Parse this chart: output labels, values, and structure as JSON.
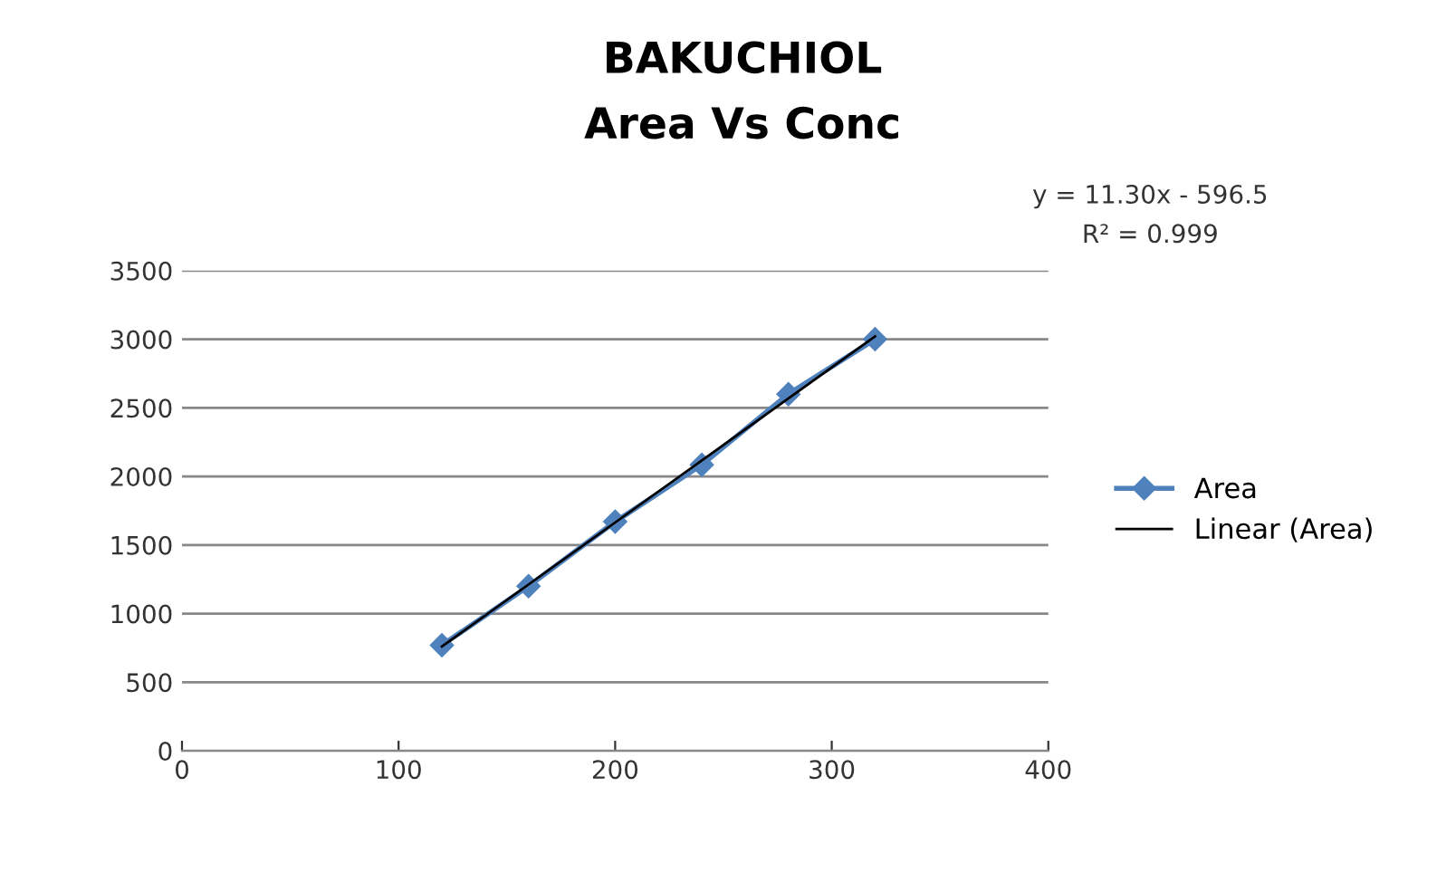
{
  "chart_data": {
    "type": "line",
    "title": "BAKUCHIOL",
    "subtitle": "Area Vs Conc",
    "series": [
      {
        "name": "Area",
        "color": "#4f81bd",
        "x": [
          120,
          160,
          200,
          240,
          280,
          320
        ],
        "values": [
          770,
          1200,
          1670,
          2085,
          2600,
          3000
        ],
        "marker": "diamond"
      },
      {
        "name": "Linear (Area)",
        "color": "#000000",
        "x": [
          120,
          320
        ],
        "values": [
          760,
          3020
        ],
        "marker": "none"
      }
    ],
    "xlim": [
      0,
      400
    ],
    "xticks": [
      0,
      100,
      200,
      300,
      400
    ],
    "ylim": [
      0,
      3500
    ],
    "yticks": [
      0,
      500,
      1000,
      1500,
      2000,
      2500,
      3000,
      3500
    ],
    "grid": "y",
    "legend": "right",
    "annotations": [
      "y = 11.30x - 596.5",
      "R² = 0.999"
    ]
  }
}
